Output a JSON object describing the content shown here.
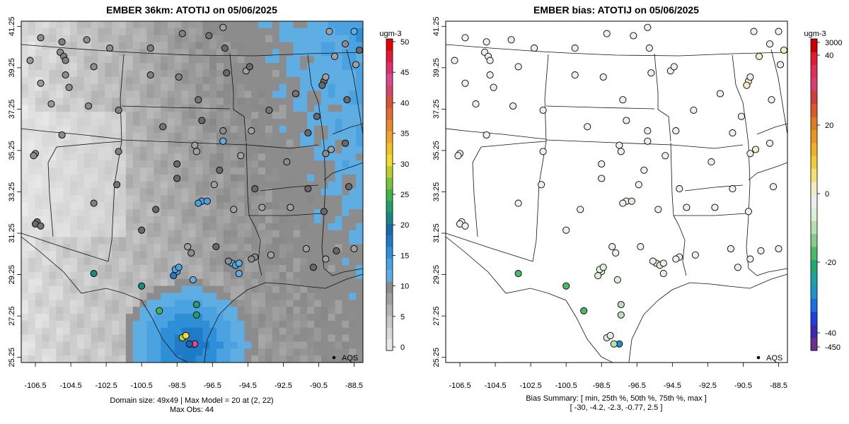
{
  "left_panel": {
    "title": "EMBER 36km: ATOTIJ on 05/06/2025",
    "footer_line1": "Domain size: 49x49 | Max Model = 20 at (2, 22)",
    "footer_line2": "Max Obs: 44",
    "legend_label": "AQS",
    "colorbar": {
      "unit": "ugm-3",
      "tick_labels": [
        "50",
        "45",
        "40",
        "35",
        "30",
        "25",
        "20",
        "15",
        "10",
        "5",
        "0"
      ],
      "colors": [
        "#e8e8e8",
        "#d9d9d9",
        "#c8c8c8",
        "#b4b4b4",
        "#a0a0a0",
        "#8c8c8c",
        "#5faee3",
        "#4aa3e0",
        "#2f8fd6",
        "#1f7ac8",
        "#1a6aaa",
        "#17877f",
        "#1fa06a",
        "#3fb54d",
        "#7cc23c",
        "#b9cf2c",
        "#f0dc2a",
        "#f3c12a",
        "#f0a42b",
        "#e88a2c",
        "#e06d2e",
        "#d85534",
        "#d6456a",
        "#d94a8f",
        "#e0306a",
        "#e01a3a",
        "#e60000"
      ]
    }
  },
  "right_panel": {
    "title": "EMBER bias: ATOTIJ on 05/06/2025",
    "footer_line1": "Bias Summary: [ min, 25th %, 50th %, 75th %, max ]",
    "footer_line2": "[ -30,   -4.2,   -2.3,   -0.77,   2.5 ]",
    "legend_label": "AQS",
    "colorbar": {
      "unit": "ugm-3",
      "tick_labels": [
        "3000",
        "40",
        "20",
        "0",
        "-20",
        "-40",
        "-450"
      ],
      "colors": [
        "#6a2e8f",
        "#3a2ab0",
        "#1f3fe0",
        "#1f6ee0",
        "#1f93c8",
        "#1aa3a0",
        "#1fa873",
        "#4cb86a",
        "#86cb8a",
        "#b7dfb3",
        "#dcefd7",
        "#eeeeee",
        "#f2ecc4",
        "#f2e07a",
        "#f0cc3a",
        "#eeb224",
        "#e8961f",
        "#e07a1f",
        "#d85a26",
        "#cf3f3a",
        "#d8406a",
        "#e0305a",
        "#e01f2e",
        "#cc0000"
      ]
    }
  },
  "axes": {
    "x_tick_labels": [
      "-106.5",
      "-104.5",
      "-102.5",
      "-100.5",
      "-98.5",
      "-96.5",
      "-94.5",
      "-92.5",
      "-90.5",
      "-88.5"
    ],
    "y_tick_labels": [
      "25.25",
      "27.25",
      "29.25",
      "31.25",
      "33.25",
      "35.25",
      "37.25",
      "39.25",
      "41.25"
    ]
  },
  "stations": [
    {
      "lon": -106.2,
      "lat": 40.7,
      "conc": 5,
      "bias": -1
    },
    {
      "lon": -105.0,
      "lat": 40.5,
      "conc": 6,
      "bias": -2
    },
    {
      "lon": -105.1,
      "lat": 40.0,
      "conc": 5,
      "bias": -2
    },
    {
      "lon": -104.9,
      "lat": 39.8,
      "conc": 6,
      "bias": -3
    },
    {
      "lon": -104.8,
      "lat": 39.6,
      "conc": 6,
      "bias": -2
    },
    {
      "lon": -104.8,
      "lat": 38.9,
      "conc": 5,
      "bias": -1
    },
    {
      "lon": -106.8,
      "lat": 39.6,
      "conc": 4,
      "bias": -1
    },
    {
      "lon": -104.6,
      "lat": 38.3,
      "conc": 5,
      "bias": -1
    },
    {
      "lon": -103.6,
      "lat": 40.6,
      "conc": 5,
      "bias": -1
    },
    {
      "lon": -102.3,
      "lat": 40.2,
      "conc": 5,
      "bias": -1
    },
    {
      "lon": -103.2,
      "lat": 39.3,
      "conc": 5,
      "bias": -1
    },
    {
      "lon": -106.2,
      "lat": 38.5,
      "conc": 4,
      "bias": -1
    },
    {
      "lon": -105.6,
      "lat": 37.5,
      "conc": 4,
      "bias": -1
    },
    {
      "lon": -103.5,
      "lat": 37.4,
      "conc": 5,
      "bias": -1
    },
    {
      "lon": -101.8,
      "lat": 37.2,
      "conc": 6,
      "bias": -2
    },
    {
      "lon": -100.0,
      "lat": 40.2,
      "conc": 6,
      "bias": -1
    },
    {
      "lon": -98.2,
      "lat": 40.9,
      "conc": 6,
      "bias": -1
    },
    {
      "lon": -96.7,
      "lat": 40.8,
      "conc": 7,
      "bias": -2
    },
    {
      "lon": -95.9,
      "lat": 41.2,
      "conc": 9,
      "bias": -1
    },
    {
      "lon": -95.8,
      "lat": 40.2,
      "conc": 8,
      "bias": -2
    },
    {
      "lon": -94.6,
      "lat": 39.1,
      "conc": 9,
      "bias": -2
    },
    {
      "lon": -94.4,
      "lat": 39.3,
      "conc": 8,
      "bias": -1
    },
    {
      "lon": -97.3,
      "lat": 37.7,
      "conc": 7,
      "bias": -2
    },
    {
      "lon": -98.4,
      "lat": 38.8,
      "conc": 6,
      "bias": -1
    },
    {
      "lon": -100.0,
      "lat": 38.9,
      "conc": 6,
      "bias": -1
    },
    {
      "lon": -95.7,
      "lat": 39.0,
      "conc": 8,
      "bias": -2
    },
    {
      "lon": -93.3,
      "lat": 37.2,
      "conc": 7,
      "bias": -3
    },
    {
      "lon": -91.8,
      "lat": 38.0,
      "conc": 7,
      "bias": -2
    },
    {
      "lon": -90.2,
      "lat": 38.6,
      "conc": 8,
      "bias": 1
    },
    {
      "lon": -90.1,
      "lat": 38.8,
      "conc": 9,
      "bias": -1
    },
    {
      "lon": -90.3,
      "lat": 38.4,
      "conc": 8,
      "bias": 2
    },
    {
      "lon": -89.6,
      "lat": 39.8,
      "conc": 9,
      "bias": 1
    },
    {
      "lon": -88.2,
      "lat": 40.1,
      "conc": 8,
      "bias": 1
    },
    {
      "lon": -89.9,
      "lat": 41.0,
      "conc": 9,
      "bias": -3
    },
    {
      "lon": -89.0,
      "lat": 40.4,
      "conc": 10,
      "bias": -2
    },
    {
      "lon": -88.5,
      "lat": 41.0,
      "conc": 12,
      "bias": -4
    },
    {
      "lon": -88.4,
      "lat": 39.4,
      "conc": 9,
      "bias": -1
    },
    {
      "lon": -88.9,
      "lat": 37.7,
      "conc": 8,
      "bias": -2
    },
    {
      "lon": -90.6,
      "lat": 36.9,
      "conc": 8,
      "bias": -1
    },
    {
      "lon": -92.3,
      "lat": 34.7,
      "conc": 10,
      "bias": -3
    },
    {
      "lon": -91.1,
      "lat": 36.1,
      "conc": 8,
      "bias": -2
    },
    {
      "lon": -90.1,
      "lat": 35.1,
      "conc": 10,
      "bias": -2
    },
    {
      "lon": -89.0,
      "lat": 35.6,
      "conc": 8,
      "bias": -1
    },
    {
      "lon": -89.8,
      "lat": 35.3,
      "conc": 9,
      "bias": 1
    },
    {
      "lon": -88.8,
      "lat": 33.5,
      "conc": 8,
      "bias": -1
    },
    {
      "lon": -90.2,
      "lat": 32.3,
      "conc": 8,
      "bias": -1
    },
    {
      "lon": -91.1,
      "lat": 33.4,
      "conc": 8,
      "bias": -2
    },
    {
      "lon": -92.1,
      "lat": 32.5,
      "conc": 9,
      "bias": -3
    },
    {
      "lon": -93.7,
      "lat": 32.5,
      "conc": 9,
      "bias": -2
    },
    {
      "lon": -94.1,
      "lat": 33.4,
      "conc": 8,
      "bias": -1
    },
    {
      "lon": -94.3,
      "lat": 36.2,
      "conc": 9,
      "bias": -2
    },
    {
      "lon": -95.9,
      "lat": 36.2,
      "conc": 10,
      "bias": -3
    },
    {
      "lon": -95.9,
      "lat": 35.7,
      "conc": 12,
      "bias": -4
    },
    {
      "lon": -97.5,
      "lat": 35.5,
      "conc": 9,
      "bias": -3
    },
    {
      "lon": -97.4,
      "lat": 35.2,
      "conc": 9,
      "bias": -3
    },
    {
      "lon": -98.5,
      "lat": 34.6,
      "conc": 8,
      "bias": -2
    },
    {
      "lon": -99.3,
      "lat": 36.4,
      "conc": 7,
      "bias": -2
    },
    {
      "lon": -97.1,
      "lat": 36.7,
      "conc": 8,
      "bias": -2
    },
    {
      "lon": -96.1,
      "lat": 34.3,
      "conc": 8,
      "bias": -2
    },
    {
      "lon": -94.9,
      "lat": 35.0,
      "conc": 9,
      "bias": -3
    },
    {
      "lon": -101.8,
      "lat": 35.2,
      "conc": 6,
      "bias": -1
    },
    {
      "lon": -106.5,
      "lat": 35.1,
      "conc": 5,
      "bias": -1
    },
    {
      "lon": -106.6,
      "lat": 35.0,
      "conc": 5,
      "bias": -1
    },
    {
      "lon": -105.0,
      "lat": 36.0,
      "conc": 5,
      "bias": -1
    },
    {
      "lon": -103.2,
      "lat": 32.7,
      "conc": 6,
      "bias": -3
    },
    {
      "lon": -101.9,
      "lat": 33.6,
      "conc": 7,
      "bias": -2
    },
    {
      "lon": -97.1,
      "lat": 32.8,
      "conc": 14,
      "bias": -4
    },
    {
      "lon": -96.8,
      "lat": 32.8,
      "conc": 13,
      "bias": -5
    },
    {
      "lon": -97.3,
      "lat": 32.7,
      "conc": 14,
      "bias": -4
    },
    {
      "lon": -96.4,
      "lat": 33.6,
      "conc": 9,
      "bias": -2
    },
    {
      "lon": -95.3,
      "lat": 32.4,
      "conc": 9,
      "bias": -3
    },
    {
      "lon": -99.7,
      "lat": 32.4,
      "conc": 8,
      "bias": -2
    },
    {
      "lon": -98.5,
      "lat": 33.9,
      "conc": 8,
      "bias": -2
    },
    {
      "lon": -106.4,
      "lat": 31.8,
      "conc": 7,
      "bias": -3
    },
    {
      "lon": -106.5,
      "lat": 31.7,
      "conc": 8,
      "bias": -4
    },
    {
      "lon": -106.2,
      "lat": 31.6,
      "conc": 7,
      "bias": -3
    },
    {
      "lon": -100.5,
      "lat": 31.4,
      "conc": 8,
      "bias": -2
    },
    {
      "lon": -97.7,
      "lat": 30.3,
      "conc": 10,
      "bias": -4
    },
    {
      "lon": -97.9,
      "lat": 30.6,
      "conc": 9,
      "bias": -3
    },
    {
      "lon": -96.3,
      "lat": 30.6,
      "conc": 8,
      "bias": -2
    },
    {
      "lon": -95.4,
      "lat": 29.8,
      "conc": 12,
      "bias": -5
    },
    {
      "lon": -95.2,
      "lat": 29.7,
      "conc": 13,
      "bias": -5
    },
    {
      "lon": -95.0,
      "lat": 29.8,
      "conc": 12,
      "bias": -4
    },
    {
      "lon": -95.6,
      "lat": 29.9,
      "conc": 11,
      "bias": -4
    },
    {
      "lon": -94.1,
      "lat": 30.1,
      "conc": 11,
      "bias": -4
    },
    {
      "lon": -94.3,
      "lat": 30.0,
      "conc": 10,
      "bias": -3
    },
    {
      "lon": -93.2,
      "lat": 30.2,
      "conc": 9,
      "bias": -3
    },
    {
      "lon": -91.2,
      "lat": 30.5,
      "conc": 9,
      "bias": -2
    },
    {
      "lon": -90.1,
      "lat": 30.0,
      "conc": 9,
      "bias": -2
    },
    {
      "lon": -89.5,
      "lat": 30.4,
      "conc": 8,
      "bias": -1
    },
    {
      "lon": -88.5,
      "lat": 30.5,
      "conc": 9,
      "bias": -2
    },
    {
      "lon": -90.8,
      "lat": 29.6,
      "conc": 8,
      "bias": -1
    },
    {
      "lon": -98.5,
      "lat": 29.4,
      "conc": 14,
      "bias": -5
    },
    {
      "lon": -98.6,
      "lat": 29.5,
      "conc": 13,
      "bias": -4
    },
    {
      "lon": -98.4,
      "lat": 29.6,
      "conc": 14,
      "bias": -6
    },
    {
      "lon": -98.7,
      "lat": 29.2,
      "conc": 17,
      "bias": -8
    },
    {
      "lon": -97.6,
      "lat": 29.0,
      "conc": 12,
      "bias": -5
    },
    {
      "lon": -95.0,
      "lat": 29.3,
      "conc": 12,
      "bias": -4
    },
    {
      "lon": -103.2,
      "lat": 29.3,
      "conc": 21,
      "bias": -17
    },
    {
      "lon": -100.5,
      "lat": 28.7,
      "conc": 22,
      "bias": -18
    },
    {
      "lon": -99.5,
      "lat": 27.5,
      "conc": 25,
      "bias": -17
    },
    {
      "lon": -97.4,
      "lat": 27.8,
      "conc": 23,
      "bias": -9
    },
    {
      "lon": -97.4,
      "lat": 27.3,
      "conc": 24,
      "bias": -10
    },
    {
      "lon": -98.2,
      "lat": 26.2,
      "conc": 28,
      "bias": -8
    },
    {
      "lon": -98.0,
      "lat": 26.3,
      "conc": 31,
      "bias": -7
    },
    {
      "lon": -97.5,
      "lat": 25.9,
      "conc": 44,
      "bias": -30
    },
    {
      "lon": -97.8,
      "lat": 25.9,
      "conc": 20,
      "bias": -12
    }
  ]
}
